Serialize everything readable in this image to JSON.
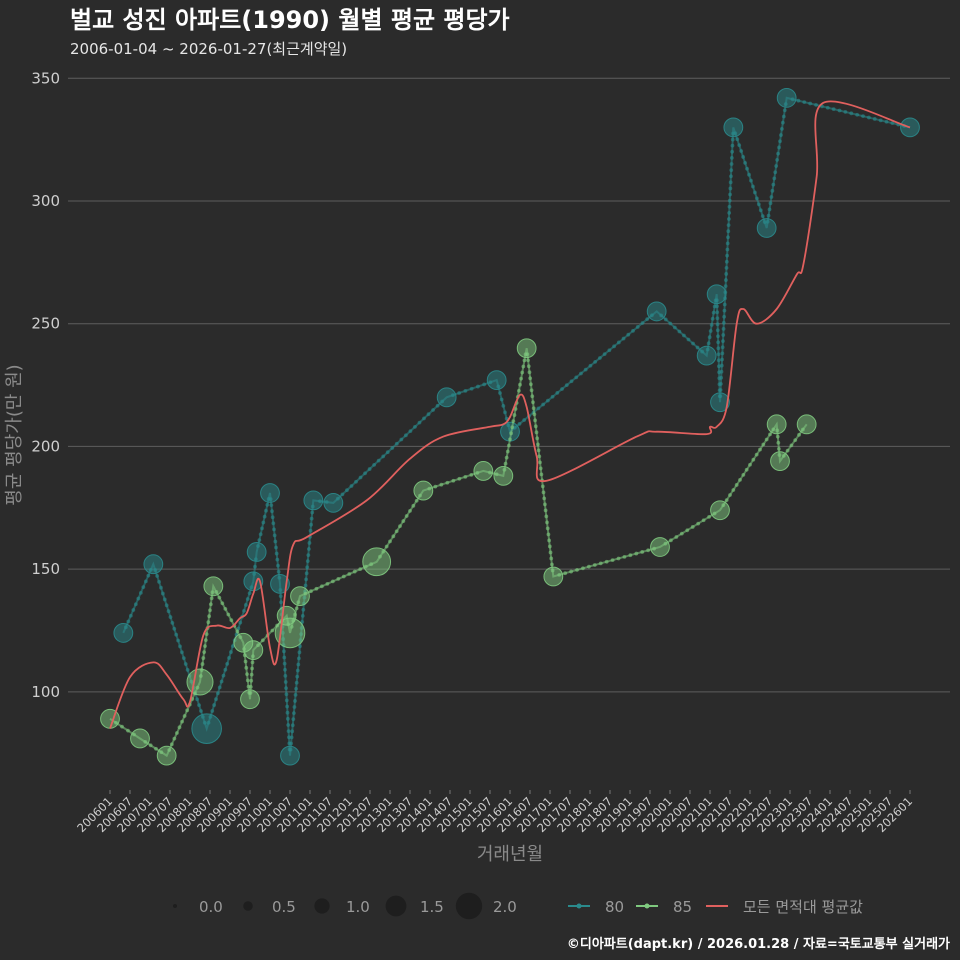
{
  "chart_data": {
    "type": "line",
    "title": "벌교 성진 아파트(1990) 월별 평균 평당가",
    "subtitle": "2006-01-04 ~ 2026-01-27(최근계약일)",
    "xlabel": "거래년월",
    "ylabel": "평균 평당가(만 원)",
    "ylim": [
      60,
      355
    ],
    "yticks": [
      100,
      150,
      200,
      250,
      300,
      350
    ],
    "x_range": [
      "200601",
      "202601"
    ],
    "x_tick_labels": [
      "200601",
      "200607",
      "200701",
      "200707",
      "200801",
      "200807",
      "200901",
      "200907",
      "201001",
      "201007",
      "201101",
      "201107",
      "201201",
      "201207",
      "201301",
      "201307",
      "201401",
      "201407",
      "201501",
      "201507",
      "201601",
      "201607",
      "201701",
      "201707",
      "201801",
      "201807",
      "201901",
      "201907",
      "202001",
      "202007",
      "202101",
      "202107",
      "202201",
      "202207",
      "202301",
      "202307",
      "202401",
      "202407",
      "202501",
      "202507",
      "202601"
    ],
    "series": [
      {
        "name": "80",
        "color": "#2a8a8c",
        "points": [
          {
            "x": "200605",
            "y": 124,
            "size": 0.6
          },
          {
            "x": "200702",
            "y": 152,
            "size": 0.6
          },
          {
            "x": "200806",
            "y": 85,
            "size": 1.2
          },
          {
            "x": "200908",
            "y": 145,
            "size": 0.6
          },
          {
            "x": "200909",
            "y": 157,
            "size": 0.6
          },
          {
            "x": "201001",
            "y": 181,
            "size": 0.6
          },
          {
            "x": "201004",
            "y": 144,
            "size": 0.6
          },
          {
            "x": "201007",
            "y": 74,
            "size": 0.6
          },
          {
            "x": "201102",
            "y": 178,
            "size": 0.6
          },
          {
            "x": "201108",
            "y": 177,
            "size": 0.6
          },
          {
            "x": "201406",
            "y": 220,
            "size": 0.6
          },
          {
            "x": "201509",
            "y": 227,
            "size": 0.6
          },
          {
            "x": "201601",
            "y": 206,
            "size": 0.6
          },
          {
            "x": "201909",
            "y": 255,
            "size": 0.6
          },
          {
            "x": "202012",
            "y": 237,
            "size": 0.6
          },
          {
            "x": "202103",
            "y": 262,
            "size": 0.6
          },
          {
            "x": "202104",
            "y": 218,
            "size": 0.6
          },
          {
            "x": "202108",
            "y": 330,
            "size": 0.6
          },
          {
            "x": "202206",
            "y": 289,
            "size": 0.6
          },
          {
            "x": "202212",
            "y": 342,
            "size": 0.6
          },
          {
            "x": "202601",
            "y": 330,
            "size": 0.6
          }
        ]
      },
      {
        "name": "85",
        "color": "#7fc97f",
        "points": [
          {
            "x": "200601",
            "y": 89,
            "size": 0.6
          },
          {
            "x": "200610",
            "y": 81,
            "size": 0.6
          },
          {
            "x": "200706",
            "y": 74,
            "size": 0.6
          },
          {
            "x": "200804",
            "y": 104,
            "size": 1.0
          },
          {
            "x": "200808",
            "y": 143,
            "size": 0.6
          },
          {
            "x": "200905",
            "y": 120,
            "size": 0.6
          },
          {
            "x": "200907",
            "y": 97,
            "size": 0.6
          },
          {
            "x": "200908",
            "y": 117,
            "size": 0.6
          },
          {
            "x": "201006",
            "y": 131,
            "size": 0.6
          },
          {
            "x": "201007",
            "y": 124,
            "size": 1.2
          },
          {
            "x": "201010",
            "y": 139,
            "size": 0.6
          },
          {
            "x": "201209",
            "y": 153,
            "size": 1.1
          },
          {
            "x": "201311",
            "y": 182,
            "size": 0.6
          },
          {
            "x": "201505",
            "y": 190,
            "size": 0.6
          },
          {
            "x": "201511",
            "y": 188,
            "size": 0.6
          },
          {
            "x": "201606",
            "y": 240,
            "size": 0.6
          },
          {
            "x": "201702",
            "y": 147,
            "size": 0.6
          },
          {
            "x": "201910",
            "y": 159,
            "size": 0.6
          },
          {
            "x": "202104",
            "y": 174,
            "size": 0.6
          },
          {
            "x": "202209",
            "y": 209,
            "size": 0.6
          },
          {
            "x": "202210",
            "y": 194,
            "size": 0.6
          },
          {
            "x": "202306",
            "y": 209,
            "size": 0.6
          }
        ]
      },
      {
        "name": "모든 면적대 평균값",
        "color": "#e0605e",
        "points": [
          {
            "x": "200601",
            "y": 85
          },
          {
            "x": "200607",
            "y": 106
          },
          {
            "x": "200702",
            "y": 112
          },
          {
            "x": "200706",
            "y": 107
          },
          {
            "x": "200711",
            "y": 97
          },
          {
            "x": "200801",
            "y": 96
          },
          {
            "x": "200805",
            "y": 123
          },
          {
            "x": "200809",
            "y": 127
          },
          {
            "x": "200901",
            "y": 126
          },
          {
            "x": "200904",
            "y": 130
          },
          {
            "x": "200906",
            "y": 132
          },
          {
            "x": "200908",
            "y": 140
          },
          {
            "x": "200910",
            "y": 145
          },
          {
            "x": "201001",
            "y": 118
          },
          {
            "x": "201003",
            "y": 113
          },
          {
            "x": "201006",
            "y": 145
          },
          {
            "x": "201008",
            "y": 160
          },
          {
            "x": "201012",
            "y": 163
          },
          {
            "x": "201206",
            "y": 178
          },
          {
            "x": "201307",
            "y": 195
          },
          {
            "x": "201405",
            "y": 204
          },
          {
            "x": "201507",
            "y": 208
          },
          {
            "x": "201511",
            "y": 209
          },
          {
            "x": "201601",
            "y": 212
          },
          {
            "x": "201604",
            "y": 221
          },
          {
            "x": "201606",
            "y": 216
          },
          {
            "x": "201609",
            "y": 196
          },
          {
            "x": "201612",
            "y": 186
          },
          {
            "x": "201903",
            "y": 204
          },
          {
            "x": "201909",
            "y": 206
          },
          {
            "x": "202012",
            "y": 205
          },
          {
            "x": "202101",
            "y": 208
          },
          {
            "x": "202103",
            "y": 208
          },
          {
            "x": "202106",
            "y": 216
          },
          {
            "x": "202109",
            "y": 250
          },
          {
            "x": "202111",
            "y": 256
          },
          {
            "x": "202203",
            "y": 250
          },
          {
            "x": "202209",
            "y": 256
          },
          {
            "x": "202303",
            "y": 270
          },
          {
            "x": "202305",
            "y": 274
          },
          {
            "x": "202309",
            "y": 310
          },
          {
            "x": "202311",
            "y": 340
          },
          {
            "x": "202601",
            "y": 330
          }
        ]
      }
    ],
    "size_legend": {
      "values": [
        "0.0",
        "0.5",
        "1.0",
        "1.5",
        "2.0"
      ]
    },
    "color_legend": [
      "80",
      "85",
      "모든 면적대 평균값"
    ]
  },
  "caption": "©디아파트(dapt.kr) / 2026.01.28 / 자료=국토교통부 실거래가"
}
